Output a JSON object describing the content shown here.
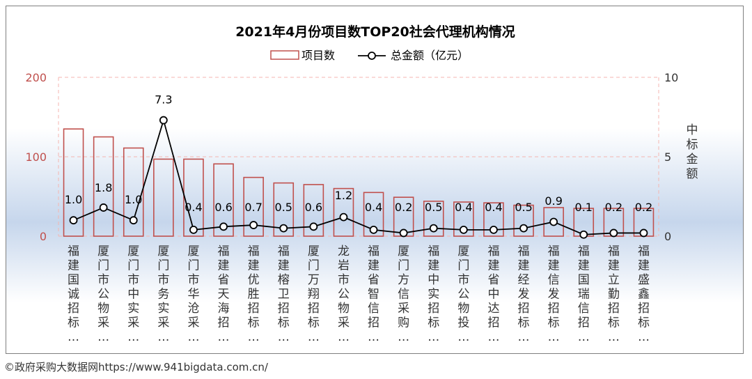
{
  "colors": {
    "bar_stroke": "#c0504d",
    "line": "#000000",
    "left_axis_text": "#c0504d",
    "right_axis_text": "#333333",
    "grid": "#f4b6b0",
    "bg_band": "#c6d6ec"
  },
  "footer": "©政府采购大数据网https://www.941bigdata.com.cn/",
  "chart_data": {
    "type": "bar+line",
    "title": "2021年4月份项目数TOP20社会代理机构情况",
    "legend": [
      "项目数",
      "总金额（亿元）"
    ],
    "legend_position": "top",
    "y_left": {
      "ticks": [
        "0",
        "100",
        "200"
      ],
      "range": [
        0,
        200
      ]
    },
    "y_right": {
      "label": "中标金额",
      "ticks": [
        "0",
        "5",
        "10"
      ],
      "range": [
        0,
        10
      ]
    },
    "grid": "dashed",
    "categories": [
      "福建国诚招标…",
      "厦门市公物采…",
      "厦门市中实采…",
      "厦门市务实采…",
      "厦门市华沧采…",
      "福建省天海招…",
      "福建优胜招标…",
      "福建榕卫招标…",
      "厦门万翔招标…",
      "龙岩市公物采…",
      "福建省智信招…",
      "厦门方信采购…",
      "福建中实招标…",
      "厦门市公物投…",
      "福建省中达招…",
      "福建经发招标…",
      "福建信发招标…",
      "福建国瑞信招…",
      "福建立勤招标…",
      "福建盛鑫招标…"
    ],
    "series": [
      {
        "name": "项目数",
        "type": "bar",
        "axis": "left",
        "values": [
          135,
          125,
          111,
          97,
          97,
          91,
          74,
          67,
          65,
          60,
          55,
          49,
          44,
          43,
          42,
          39,
          36,
          35,
          35,
          35
        ]
      },
      {
        "name": "总金额（亿元）",
        "type": "line",
        "axis": "right",
        "values": [
          1.0,
          1.8,
          1.0,
          7.3,
          0.4,
          0.6,
          0.7,
          0.5,
          0.6,
          1.2,
          0.4,
          0.2,
          0.5,
          0.4,
          0.4,
          0.5,
          0.9,
          0.1,
          0.2,
          0.2
        ],
        "labels": [
          "1.0",
          "1.8",
          "1.0",
          "7.3",
          "0.4",
          "0.6",
          "0.7",
          "0.5",
          "0.6",
          "1.2",
          "0.4",
          "0.2",
          "0.5",
          "0.4",
          "0.4",
          "0.5",
          "0.9",
          "0.1",
          "0.2",
          "0.2"
        ]
      }
    ]
  }
}
